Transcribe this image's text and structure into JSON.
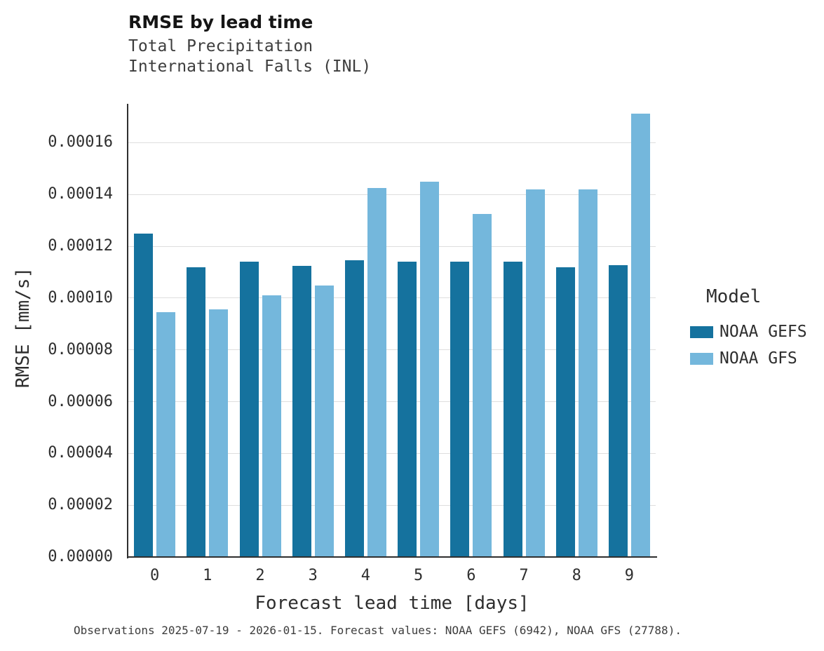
{
  "header": {
    "title": "RMSE by lead time",
    "subtitle_line1": "Total Precipitation",
    "subtitle_line2": "International Falls (INL)"
  },
  "chart_data": {
    "type": "bar",
    "title": "RMSE by lead time",
    "subtitle": [
      "Total Precipitation",
      "International Falls (INL)"
    ],
    "categories": [
      "0",
      "1",
      "2",
      "3",
      "4",
      "5",
      "6",
      "7",
      "8",
      "9"
    ],
    "series": [
      {
        "name": "NOAA GEFS",
        "color": "#15729e",
        "values": [
          0.000125,
          0.000112,
          0.000114,
          0.0001125,
          0.0001145,
          0.000114,
          0.000114,
          0.000114,
          0.0001118,
          0.0001128
        ]
      },
      {
        "name": "NOAA GFS",
        "color": "#74b7dc",
        "values": [
          9.45e-05,
          9.57e-05,
          0.000101,
          0.0001048,
          0.0001425,
          0.000145,
          0.0001325,
          0.000142,
          0.000142,
          0.0001713
        ]
      }
    ],
    "xlabel": "Forecast lead time [days]",
    "ylabel": "RMSE [mm/s]",
    "ylim": [
      0,
      0.000175
    ],
    "yticks": [
      0,
      2e-05,
      4e-05,
      6e-05,
      8e-05,
      0.0001,
      0.00012,
      0.00014,
      0.00016
    ],
    "ytick_labels": [
      "0.00000",
      "0.00002",
      "0.00004",
      "0.00006",
      "0.00008",
      "0.00010",
      "0.00012",
      "0.00014",
      "0.00016"
    ],
    "grid": true,
    "legend_title": "Model",
    "legend_position": "right"
  },
  "legend": {
    "title": "Model",
    "items": [
      {
        "label": "NOAA GEFS",
        "color": "#15729e"
      },
      {
        "label": "NOAA GFS",
        "color": "#74b7dc"
      }
    ]
  },
  "footer": {
    "caption": "Observations 2025-07-19 - 2026-01-15. Forecast values: NOAA GEFS (6942), NOAA GFS (27788)."
  }
}
